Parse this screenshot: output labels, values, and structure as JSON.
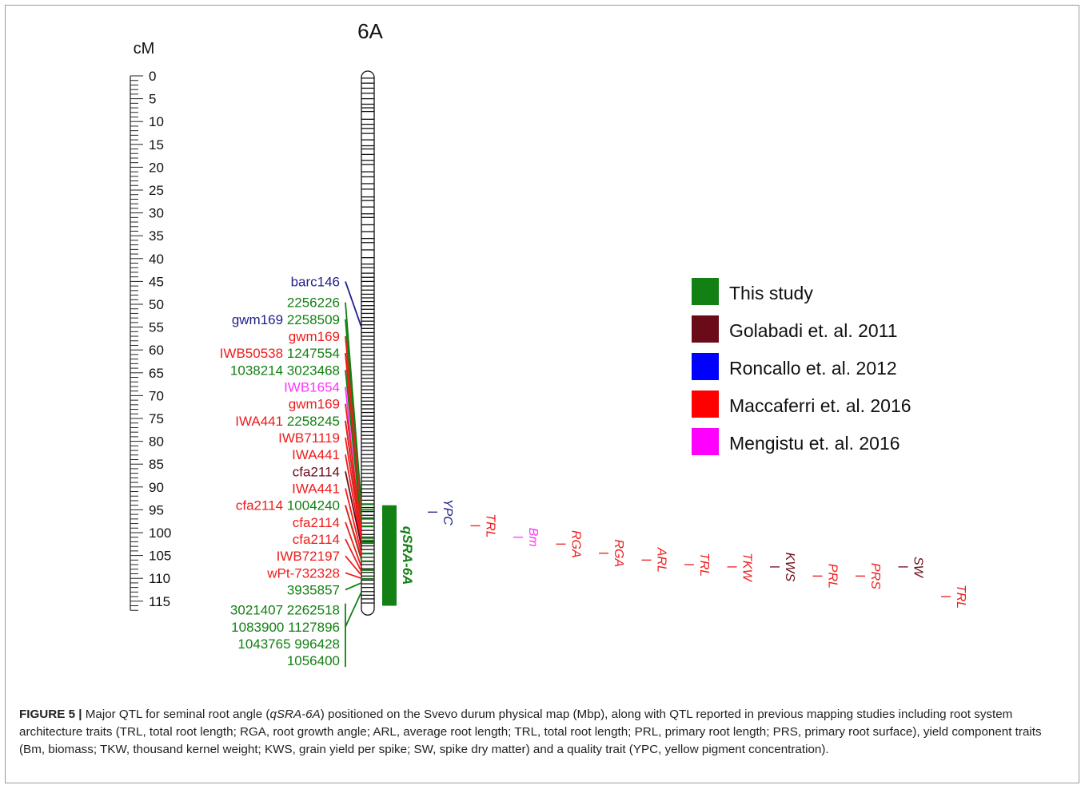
{
  "chromosome": "6A",
  "units": "cM",
  "scale": {
    "min": 0,
    "max": 117,
    "label_step": 5,
    "labels": [
      "0",
      "5",
      "10",
      "15",
      "20",
      "25",
      "30",
      "35",
      "40",
      "45",
      "50",
      "55",
      "60",
      "65",
      "70",
      "75",
      "80",
      "85",
      "90",
      "95",
      "100",
      "105",
      "110",
      "115"
    ]
  },
  "bands": [
    0.5,
    1.6,
    2.7,
    3.8,
    5.0,
    6.2,
    7.0,
    7.8,
    9.5,
    10.6,
    11.5,
    12.6,
    14.0,
    15.3,
    16.0,
    17.2,
    18.5,
    19.4,
    21.0,
    22.1,
    23.6,
    24.8,
    26.5,
    27.3,
    28.7,
    30.2,
    31.0,
    32.6,
    34.1,
    35.6,
    36.5,
    38.1,
    39.8,
    41.2,
    42.0,
    43.2,
    44.1,
    45.0,
    46.0,
    46.9,
    47.8,
    48.6,
    49.4,
    50.3,
    51.1,
    52.0,
    52.9,
    53.7,
    54.5,
    55.3,
    56.2,
    57.0,
    57.8,
    58.7,
    59.5,
    60.4,
    61.2,
    62.0,
    62.9,
    63.7,
    64.5,
    65.4,
    66.2,
    67.0,
    67.9,
    68.7,
    69.5,
    70.4,
    71.2,
    72.0,
    72.9,
    73.7,
    74.5,
    75.4,
    76.2,
    77.0,
    77.9,
    78.7,
    79.5,
    80.4,
    81.2,
    82.0,
    82.9,
    83.7,
    84.5,
    85.4,
    86.2,
    87.0,
    87.9,
    88.7,
    89.5,
    90.4,
    91.2,
    92.0,
    92.9,
    93.7,
    94.5,
    95.4,
    96.2,
    97.0,
    97.9,
    98.7,
    99.5,
    100.4,
    101.2,
    102.0,
    102.9,
    103.7,
    104.5,
    105.4,
    106.2,
    107.0,
    107.9,
    108.7,
    109.5,
    110.4,
    111.2,
    112.0,
    112.9,
    113.7,
    114.5,
    115.4
  ],
  "highlight_bands": [
    93.8,
    95.0,
    96.8,
    98.6,
    101.0,
    101.7,
    102.3,
    104.6,
    106.3,
    108.2,
    110.1
  ],
  "markers": [
    {
      "parts": [
        {
          "text": "barc146",
          "color": "#1f1f8c"
        }
      ],
      "pos": 45.0,
      "link": [
        {
          "cm": 55.0,
          "color": "#1f1f8c"
        }
      ]
    },
    {
      "parts": [
        {
          "text": "2256226",
          "color": "#138013"
        }
      ],
      "pos": 49.6,
      "link": [
        {
          "cm": 94.0,
          "color": "#138013"
        }
      ]
    },
    {
      "parts": [
        {
          "text": "gwm169",
          "color": "#1f1f8c"
        },
        {
          "text": "2258509",
          "color": "#138013"
        }
      ],
      "pos": 53.3,
      "link": [
        {
          "cm": 95.0,
          "color": "#138013"
        }
      ]
    },
    {
      "parts": [
        {
          "text": "gwm169",
          "color": "#ee1c1c"
        }
      ],
      "pos": 57.0,
      "link": [
        {
          "cm": 96.5,
          "color": "#ee1c1c"
        }
      ]
    },
    {
      "parts": [
        {
          "text": "IWB50538",
          "color": "#ee1c1c"
        },
        {
          "text": "1247554",
          "color": "#138013"
        }
      ],
      "pos": 60.7,
      "link": [
        {
          "cm": 97.5,
          "color": "#138013"
        },
        {
          "cm": 98.0,
          "color": "#ee1c1c"
        }
      ]
    },
    {
      "parts": [
        {
          "text": "1038214 3023468",
          "color": "#138013"
        }
      ],
      "pos": 64.4,
      "link": [
        {
          "cm": 98.6,
          "color": "#138013"
        }
      ]
    },
    {
      "parts": [
        {
          "text": "IWB1654",
          "color": "#ff33ff"
        }
      ],
      "pos": 68.1,
      "link": [
        {
          "cm": 102.0,
          "color": "#ff33ff"
        }
      ]
    },
    {
      "parts": [
        {
          "text": "gwm169",
          "color": "#ee1c1c"
        }
      ],
      "pos": 71.8,
      "link": [
        {
          "cm": 99.5,
          "color": "#ee1c1c"
        }
      ]
    },
    {
      "parts": [
        {
          "text": "IWA441",
          "color": "#ee1c1c"
        },
        {
          "text": "2258245",
          "color": "#138013"
        }
      ],
      "pos": 75.5,
      "link": [
        {
          "cm": 101.0,
          "color": "#138013"
        },
        {
          "cm": 100.5,
          "color": "#ee1c1c"
        }
      ]
    },
    {
      "parts": [
        {
          "text": "IWB71119",
          "color": "#ee1c1c"
        }
      ],
      "pos": 79.2,
      "link": [
        {
          "cm": 101.5,
          "color": "#ee1c1c"
        }
      ]
    },
    {
      "parts": [
        {
          "text": "IWA441",
          "color": "#ee1c1c"
        }
      ],
      "pos": 82.9,
      "link": [
        {
          "cm": 102.5,
          "color": "#ee1c1c"
        }
      ]
    },
    {
      "parts": [
        {
          "text": "cfa2114",
          "color": "#6b0a18"
        }
      ],
      "pos": 86.6,
      "link": [
        {
          "cm": 103.0,
          "color": "#6b0a18"
        }
      ]
    },
    {
      "parts": [
        {
          "text": "IWA441",
          "color": "#ee1c1c"
        }
      ],
      "pos": 90.3,
      "link": [
        {
          "cm": 104.5,
          "color": "#ee1c1c"
        }
      ]
    },
    {
      "parts": [
        {
          "text": "cfa2114",
          "color": "#ee1c1c"
        },
        {
          "text": "1004240",
          "color": "#138013"
        }
      ],
      "pos": 94.0,
      "link": [
        {
          "cm": 106.0,
          "color": "#138013"
        },
        {
          "cm": 105.5,
          "color": "#ee1c1c"
        }
      ]
    },
    {
      "parts": [
        {
          "text": "cfa2114",
          "color": "#ee1c1c"
        }
      ],
      "pos": 97.7,
      "link": [
        {
          "cm": 107.5,
          "color": "#ee1c1c"
        }
      ]
    },
    {
      "parts": [
        {
          "text": "cfa2114",
          "color": "#ee1c1c"
        }
      ],
      "pos": 101.4,
      "link": [
        {
          "cm": 108.5,
          "color": "#ee1c1c"
        }
      ]
    },
    {
      "parts": [
        {
          "text": "IWB72197",
          "color": "#ee1c1c"
        }
      ],
      "pos": 105.1,
      "link": [
        {
          "cm": 109.3,
          "color": "#ee1c1c"
        }
      ]
    },
    {
      "parts": [
        {
          "text": "wPt-732328",
          "color": "#ee1c1c"
        }
      ],
      "pos": 108.8,
      "link": [
        {
          "cm": 110.0,
          "color": "#ee1c1c"
        }
      ]
    },
    {
      "parts": [
        {
          "text": "3935857",
          "color": "#138013"
        }
      ],
      "pos": 112.5,
      "link": [
        {
          "cm": 111.0,
          "color": "#138013"
        }
      ]
    },
    {
      "parts": [
        {
          "text": "3021407 2262518",
          "color": "#138013"
        }
      ],
      "pos": 116.9
    },
    {
      "parts": [
        {
          "text": "1083900 1127896",
          "color": "#138013"
        }
      ],
      "pos": 120.6,
      "link": [
        {
          "cm": 113.0,
          "color": "#138013"
        }
      ]
    },
    {
      "parts": [
        {
          "text": "1043765 996428",
          "color": "#138013"
        }
      ],
      "pos": 124.3
    },
    {
      "parts": [
        {
          "text": "1056400",
          "color": "#138013"
        }
      ],
      "pos": 128.0
    }
  ],
  "qtl_main": {
    "label": "qSRA-6A",
    "start": 94.0,
    "end": 116.0,
    "color": "#138013"
  },
  "qtls": [
    {
      "label": "YPC",
      "pos": 95.5,
      "color": "#1f1f8c"
    },
    {
      "label": "TRL",
      "pos": 98.5,
      "color": "#ee1c1c"
    },
    {
      "label": "Bm",
      "pos": 101.0,
      "color": "#ff33ff"
    },
    {
      "label": "RGA",
      "pos": 102.5,
      "color": "#ee1c1c"
    },
    {
      "label": "RGA",
      "pos": 104.5,
      "color": "#ee1c1c"
    },
    {
      "label": "ARL",
      "pos": 106.0,
      "color": "#ee1c1c"
    },
    {
      "label": "TRL",
      "pos": 107.0,
      "color": "#ee1c1c"
    },
    {
      "label": "TKW",
      "pos": 107.5,
      "color": "#ee1c1c"
    },
    {
      "label": "KWS",
      "pos": 107.5,
      "color": "#6b0a18"
    },
    {
      "label": "PRL",
      "pos": 109.5,
      "color": "#ee1c1c"
    },
    {
      "label": "PRS",
      "pos": 109.5,
      "color": "#ee1c1c"
    },
    {
      "label": "SW",
      "pos": 107.5,
      "color": "#6b0a18"
    },
    {
      "label": "TRL",
      "pos": 114.0,
      "color": "#ee1c1c"
    }
  ],
  "legend": [
    {
      "label": "This study",
      "color": "#138013"
    },
    {
      "label": "Golabadi et. al. 2011",
      "color": "#6b0a18"
    },
    {
      "label": "Roncallo et. al. 2012",
      "color": "#0000ff"
    },
    {
      "label": "Maccaferri et. al. 2016",
      "color": "#ff0000"
    },
    {
      "label": "Mengistu et. al. 2016",
      "color": "#ff00ff"
    }
  ],
  "caption": {
    "figure_label": "FIGURE 5 |",
    "text_before_italic": " Major QTL for seminal root angle (",
    "italic": "qSRA-6A",
    "text_after_italic": ") positioned on the Svevo durum physical map (Mbp), along with QTL reported in previous mapping studies including root system architecture traits (TRL, total root length; RGA, root growth angle; ARL, average root length; TRL, total root length; PRL, primary root length; PRS, primary root surface), yield component traits (Bm, biomass; TKW, thousand kernel weight; KWS, grain yield per spike; SW, spike dry matter) and a quality trait (YPC, yellow pigment concentration)."
  }
}
